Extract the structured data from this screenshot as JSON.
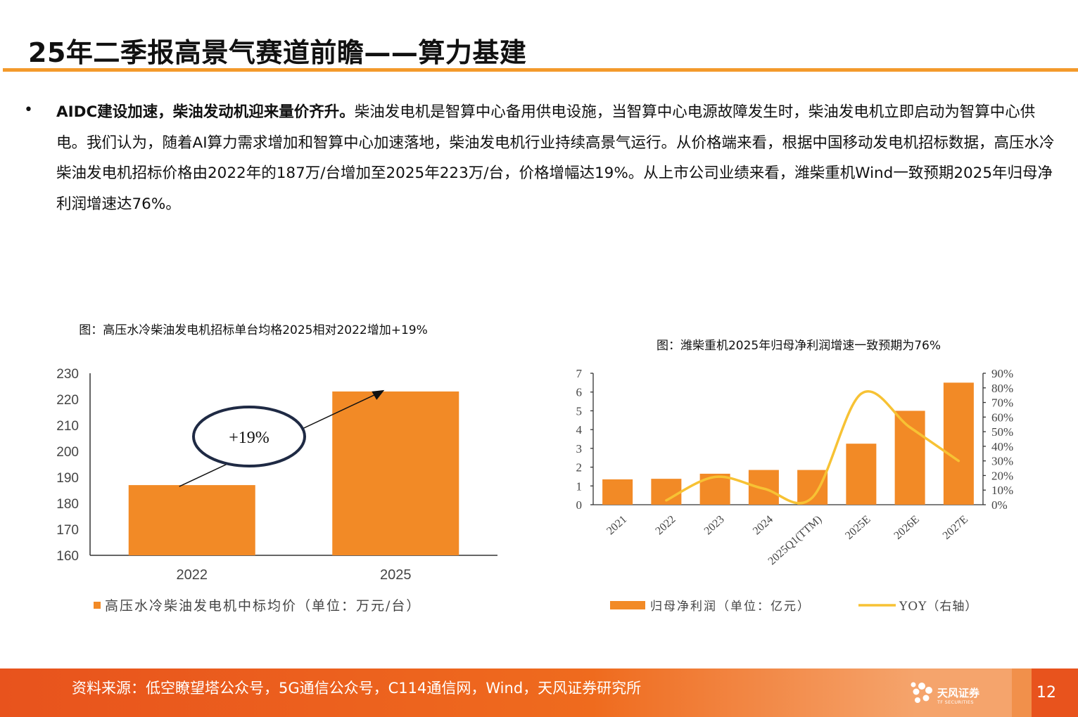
{
  "header": {
    "title": "25年二季报高景气赛道前瞻——算力基建"
  },
  "body": {
    "bullet": "•",
    "lead": "AIDC建设加速，柴油发动机迎来量价齐升。",
    "text": "柴油发电机是智算中心备用供电设施，当智算中心电源故障发生时，柴油发电机立即启动为智算中心供电。我们认为，随着AI算力需求增加和智算中心加速落地，柴油发电机行业持续高景气运行。从价格端来看，根据中国移动发电机招标数据，高压水冷柴油发电机招标价格由2022年的187万/台增加至2025年223万/台，价格增幅达19%。从上市公司业绩来看，潍柴重机Wind一致预期2025年归母净利润增速达76%。"
  },
  "chart_data": [
    {
      "type": "bar",
      "title": "图：高压水冷柴油发电机招标单台均格2025相对2022增加+19%",
      "categories": [
        "2022",
        "2025"
      ],
      "series": [
        {
          "name": "高压水冷柴油发电机中标均价（单位：万元/台）",
          "values": [
            187,
            223
          ]
        }
      ],
      "ylim": [
        160,
        230
      ],
      "yticks": [
        160,
        170,
        180,
        190,
        200,
        210,
        220,
        230
      ],
      "annotation": "+19%",
      "legend": "bottom-left",
      "color": "#f28a26"
    },
    {
      "type": "bar",
      "title": "图：潍柴重机2025年归母净利润增速一致预期为76%",
      "categories": [
        "2021",
        "2022",
        "2023",
        "2024",
        "2025Q1(TTM)",
        "2025E",
        "2026E",
        "2027E"
      ],
      "series": [
        {
          "name": "归母净利润（单位：亿元）",
          "type": "bar",
          "axis": "left",
          "values": [
            1.35,
            1.38,
            1.65,
            1.85,
            1.85,
            3.25,
            5.0,
            6.5
          ]
        },
        {
          "name": "YOY（右轴）",
          "type": "line",
          "axis": "right",
          "values": [
            null,
            0.03,
            0.19,
            0.11,
            0.05,
            0.76,
            0.53,
            0.3
          ]
        }
      ],
      "ylim_left": [
        0,
        7
      ],
      "yticks_left": [
        0,
        1,
        2,
        3,
        4,
        5,
        6,
        7
      ],
      "ylim_right": [
        0,
        0.9
      ],
      "yticks_right": [
        "0%",
        "10%",
        "20%",
        "30%",
        "40%",
        "50%",
        "60%",
        "70%",
        "80%",
        "90%"
      ],
      "legend": "bottom",
      "bar_color": "#f28a26",
      "line_color": "#f7c234"
    }
  ],
  "footer": {
    "source": "资料来源：低空瞭望塔公众号，5G通信公众号，C114通信网，Wind，天风证券研究所",
    "logo_cn": "天风证券",
    "logo_en": "TF SECURITIES",
    "page": "12"
  },
  "colors": {
    "accent": "#f39a2b",
    "footer": "#e8531d",
    "bar": "#f28a26",
    "line": "#f7c234",
    "ellipse": "#1f2a44"
  }
}
